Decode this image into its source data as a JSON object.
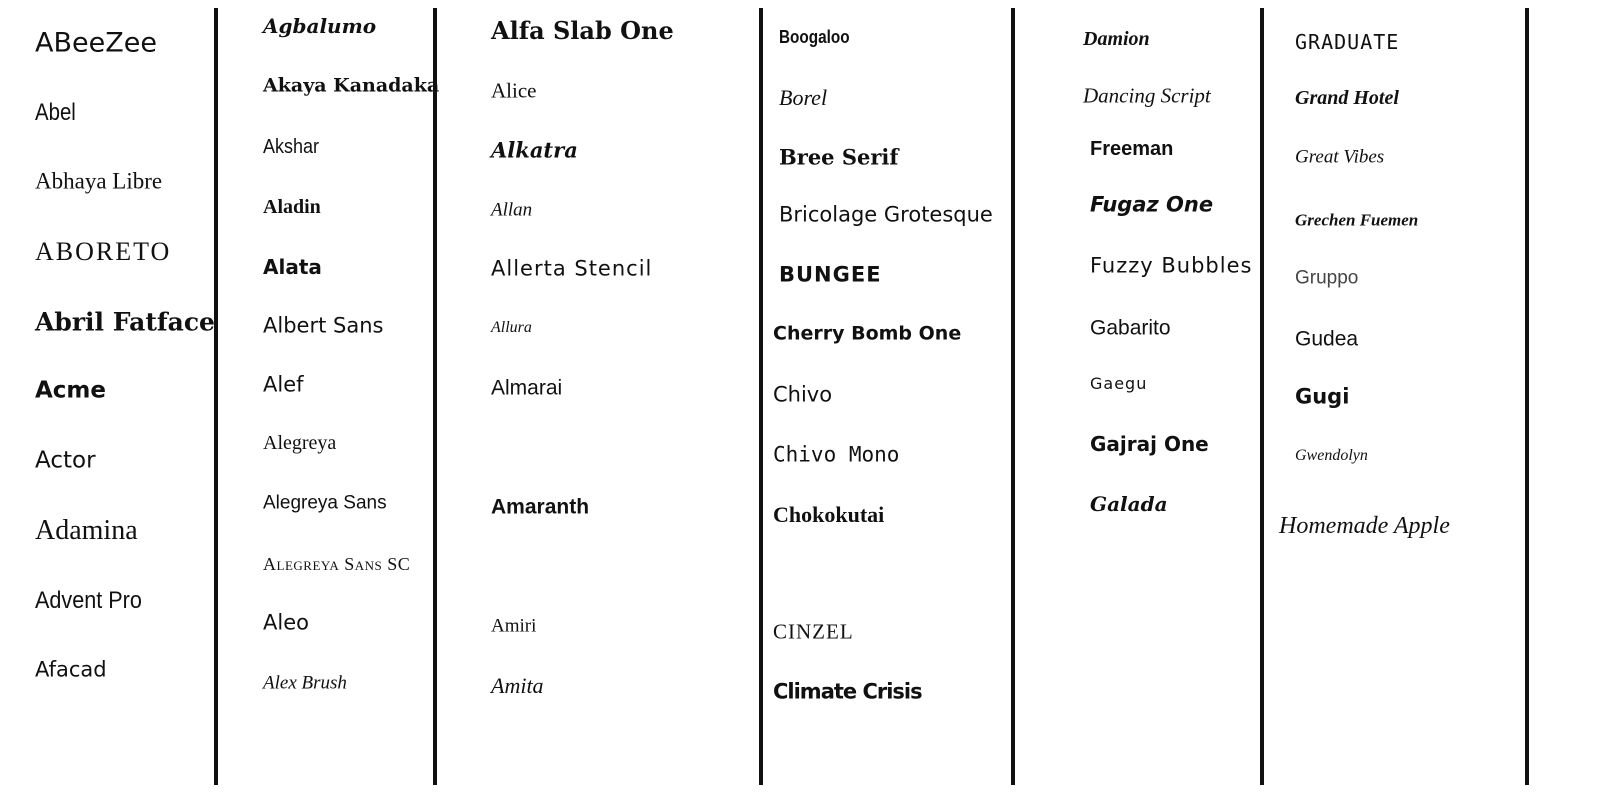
{
  "columns": [
    {
      "items": [
        "ABeeZee",
        "Abel",
        "Abhaya Libre",
        "ABORETO",
        "Abril Fatface",
        "Acme",
        "Actor",
        "Adamina",
        "Advent Pro",
        "Afacad"
      ]
    },
    {
      "items": [
        "Agbalumo",
        "Akaya Kanadaka",
        "Akshar",
        "Aladin",
        "Alata",
        "Albert Sans",
        "Alef",
        "Alegreya",
        "Alegreya Sans",
        "Alegreya Sans SC",
        "Aleo",
        "Alex Brush"
      ]
    },
    {
      "items": [
        "Alfa Slab One",
        "Alice",
        "Alkatra",
        "Allan",
        "Allerta Stencil",
        "Allura",
        "Almarai",
        "Amaranth",
        "Amiri",
        "Amita"
      ]
    },
    {
      "items": [
        "Boogaloo",
        "Borel",
        "Bree Serif",
        "Bricolage Grotesque",
        "BUNGEE",
        "Cherry Bomb One",
        "Chivo",
        "Chivo Mono",
        "Chokokutai",
        "CINZEL",
        "Climate Crisis"
      ]
    },
    {
      "items": [
        "Damion",
        "Dancing Script",
        "Freeman",
        "Fugaz One",
        "Fuzzy Bubbles",
        "Gabarito",
        "Gaegu",
        "Gajraj One",
        "Galada"
      ]
    },
    {
      "items": [
        "GRADUATE",
        "Grand Hotel",
        "Great Vibes",
        "Grechen Fuemen",
        "Gruppo",
        "Gudea",
        "Gugi",
        "Gwendolyn",
        "Homemade Apple"
      ]
    }
  ]
}
